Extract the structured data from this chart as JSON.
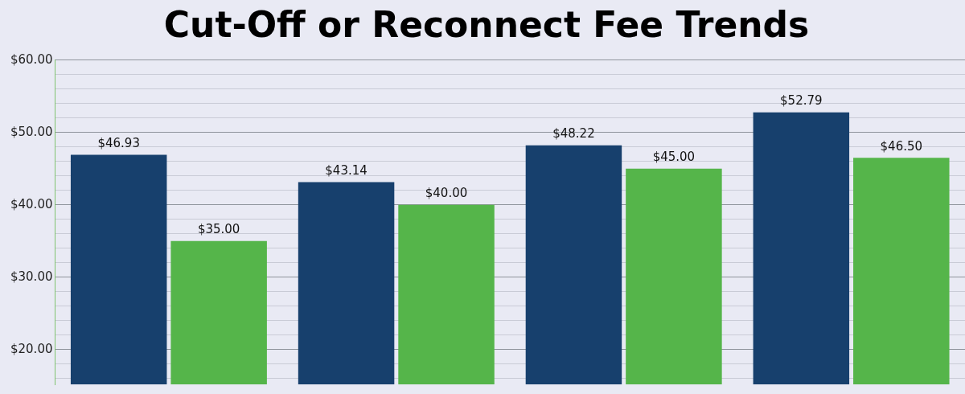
{
  "chart_data": {
    "type": "bar",
    "title": "Cut-Off or Reconnect Fee Trends",
    "categories": [
      null,
      null,
      null,
      null
    ],
    "series": [
      {
        "color": "#17406d",
        "values": [
          46.93,
          43.14,
          48.22,
          52.79
        ],
        "value_labels": [
          "$46.93",
          "$43.14",
          "$48.22",
          "$52.79"
        ]
      },
      {
        "color": "#55b54a",
        "values": [
          35.0,
          40.0,
          45.0,
          46.5
        ],
        "value_labels": [
          "$35.00",
          "$40.00",
          "$45.00",
          "$46.50"
        ]
      }
    ],
    "ylim": [
      15.2,
      60
    ],
    "yticks": [
      {
        "value": 16,
        "label": null
      },
      {
        "value": 18,
        "label": null
      },
      {
        "value": 20,
        "label": "$20.00"
      },
      {
        "value": 22,
        "label": null
      },
      {
        "value": 24,
        "label": null
      },
      {
        "value": 26,
        "label": null
      },
      {
        "value": 28,
        "label": null
      },
      {
        "value": 30,
        "label": "$30.00"
      },
      {
        "value": 32,
        "label": null
      },
      {
        "value": 34,
        "label": null
      },
      {
        "value": 36,
        "label": null
      },
      {
        "value": 38,
        "label": null
      },
      {
        "value": 40,
        "label": "$40.00"
      },
      {
        "value": 42,
        "label": null
      },
      {
        "value": 44,
        "label": null
      },
      {
        "value": 46,
        "label": null
      },
      {
        "value": 48,
        "label": null
      },
      {
        "value": 50,
        "label": "$50.00"
      },
      {
        "value": 52,
        "label": null
      },
      {
        "value": 54,
        "label": null
      },
      {
        "value": 56,
        "label": null
      },
      {
        "value": 58,
        "label": null
      },
      {
        "value": 60,
        "label": "$60.00"
      }
    ],
    "grid": "y",
    "legend": false
  }
}
